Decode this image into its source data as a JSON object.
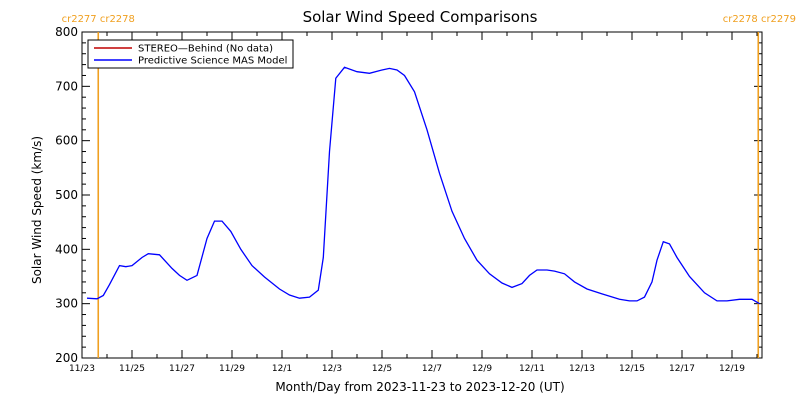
{
  "chart_data": {
    "type": "line",
    "title": "Solar Wind Speed Comparisons",
    "xlabel": "Month/Day from 2023-11-23 to 2023-12-20 (UT)",
    "ylabel": "Solar Wind Speed (km/s)",
    "ylim": [
      200,
      800
    ],
    "yticks": [
      200,
      300,
      400,
      500,
      600,
      700,
      800
    ],
    "xlim": [
      0,
      27.2
    ],
    "xticks": [
      {
        "x": 0,
        "label": "11/23"
      },
      {
        "x": 2,
        "label": "11/25"
      },
      {
        "x": 4,
        "label": "11/27"
      },
      {
        "x": 6,
        "label": "11/29"
      },
      {
        "x": 8,
        "label": "12/1"
      },
      {
        "x": 10,
        "label": "12/3"
      },
      {
        "x": 12,
        "label": "12/5"
      },
      {
        "x": 14,
        "label": "12/7"
      },
      {
        "x": 16,
        "label": "12/9"
      },
      {
        "x": 18,
        "label": "12/11"
      },
      {
        "x": 20,
        "label": "12/13"
      },
      {
        "x": 22,
        "label": "12/15"
      },
      {
        "x": 24,
        "label": "12/17"
      },
      {
        "x": 26,
        "label": "12/19"
      }
    ],
    "grid": false,
    "legend_position": "top-left",
    "series": [
      {
        "name": "STEREO—Behind (No data)",
        "color": "#c00000",
        "x": [],
        "y": []
      },
      {
        "name": "Predictive Science MAS Model",
        "color": "#0000ff",
        "x": [
          0.2,
          0.6,
          0.85,
          1.1,
          1.5,
          1.75,
          2.0,
          2.4,
          2.65,
          3.1,
          3.6,
          3.9,
          4.2,
          4.6,
          5.0,
          5.3,
          5.6,
          5.95,
          6.35,
          6.8,
          7.3,
          7.9,
          8.3,
          8.7,
          9.1,
          9.45,
          9.65,
          9.9,
          10.15,
          10.5,
          11.0,
          11.5,
          12.0,
          12.3,
          12.6,
          12.9,
          13.3,
          13.8,
          14.3,
          14.8,
          15.3,
          15.8,
          16.3,
          16.8,
          17.2,
          17.6,
          17.9,
          18.2,
          18.6,
          18.9,
          19.3,
          19.7,
          20.2,
          20.8,
          21.5,
          21.9,
          22.2,
          22.5,
          22.8,
          23.0,
          23.25,
          23.5,
          23.8,
          24.3,
          24.9,
          25.4,
          25.8,
          26.3,
          26.8,
          27.1
        ],
        "y": [
          310,
          309,
          315,
          335,
          370,
          368,
          370,
          385,
          392,
          390,
          365,
          352,
          343,
          352,
          420,
          452,
          452,
          433,
          400,
          370,
          349,
          327,
          316,
          310,
          312,
          325,
          385,
          580,
          715,
          735,
          727,
          724,
          730,
          733,
          730,
          720,
          690,
          620,
          540,
          470,
          420,
          380,
          355,
          338,
          330,
          337,
          352,
          362,
          362,
          360,
          355,
          340,
          327,
          318,
          308,
          305,
          305,
          312,
          340,
          380,
          414,
          410,
          385,
          350,
          320,
          305,
          305,
          308,
          308,
          300
        ]
      }
    ],
    "markers": [
      {
        "x": 0.65,
        "labels": [
          "cr2277",
          "cr2278"
        ],
        "color": "#f0a020"
      },
      {
        "x": 27.05,
        "labels": [
          "cr2278",
          "cr2279"
        ],
        "color": "#f0a020"
      }
    ]
  }
}
